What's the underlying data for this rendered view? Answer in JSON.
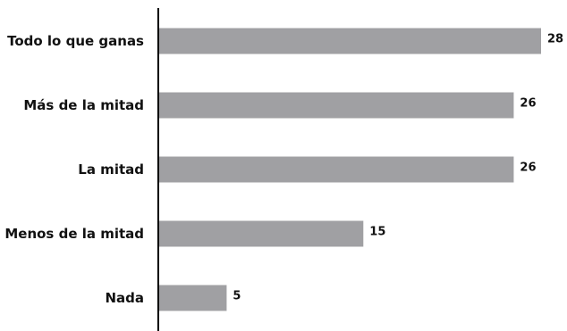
{
  "chart_data": {
    "type": "bar",
    "orientation": "horizontal",
    "categories": [
      "Todo lo que ganas",
      "Más de la mitad",
      "La mitad",
      "Menos de la mitad",
      "Nada"
    ],
    "values": [
      28,
      26,
      26,
      15,
      5
    ],
    "value_labels": [
      "28",
      "26",
      "26",
      "15",
      "5"
    ],
    "xlim": [
      0,
      28
    ],
    "grid": false,
    "legend": "none",
    "bar_color": "#a0a0a3",
    "axis_color": "#000000"
  }
}
